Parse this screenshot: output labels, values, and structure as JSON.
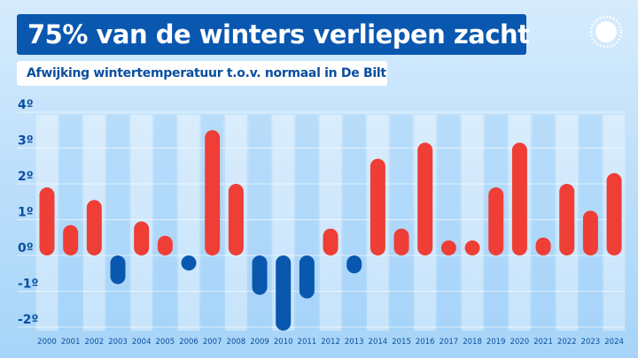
{
  "header": {
    "title": "75% van de winters verliepen zacht",
    "subtitle": "Afwijking wintertemperatuur t.o.v. normaal in De Bilt"
  },
  "colors": {
    "warm": "#ee3e36",
    "cold": "#0a57b0",
    "text": "#0a4fa0"
  },
  "chart_data": {
    "type": "bar",
    "title": "75% van de winters verliepen zacht",
    "subtitle": "Afwijking wintertemperatuur t.o.v. normaal in De Bilt",
    "xlabel": "",
    "ylabel": "",
    "ylim": [
      -2,
      4
    ],
    "yticks": [
      {
        "v": 4,
        "label": "4º"
      },
      {
        "v": 3,
        "label": "3º"
      },
      {
        "v": 2,
        "label": "2º"
      },
      {
        "v": 1,
        "label": "1º"
      },
      {
        "v": 0,
        "label": "0º"
      },
      {
        "v": -1,
        "label": "-1º"
      },
      {
        "v": -2,
        "label": "-2º"
      }
    ],
    "categories": [
      "2000",
      "2001",
      "2002",
      "2003",
      "2004",
      "2005",
      "2006",
      "2007",
      "2008",
      "2009",
      "2010",
      "2011",
      "2012",
      "2013",
      "2014",
      "2015",
      "2016",
      "2017",
      "2018",
      "2019",
      "2020",
      "2021",
      "2022",
      "2023",
      "2024"
    ],
    "values": [
      1.9,
      0.85,
      1.55,
      -0.8,
      0.95,
      0.55,
      -0.4,
      3.5,
      2.0,
      -1.1,
      -2.1,
      -1.2,
      0.75,
      -0.5,
      2.7,
      0.75,
      3.15,
      0.35,
      0.4,
      1.9,
      3.15,
      0.5,
      2.0,
      1.25,
      2.3
    ],
    "grid": true
  }
}
